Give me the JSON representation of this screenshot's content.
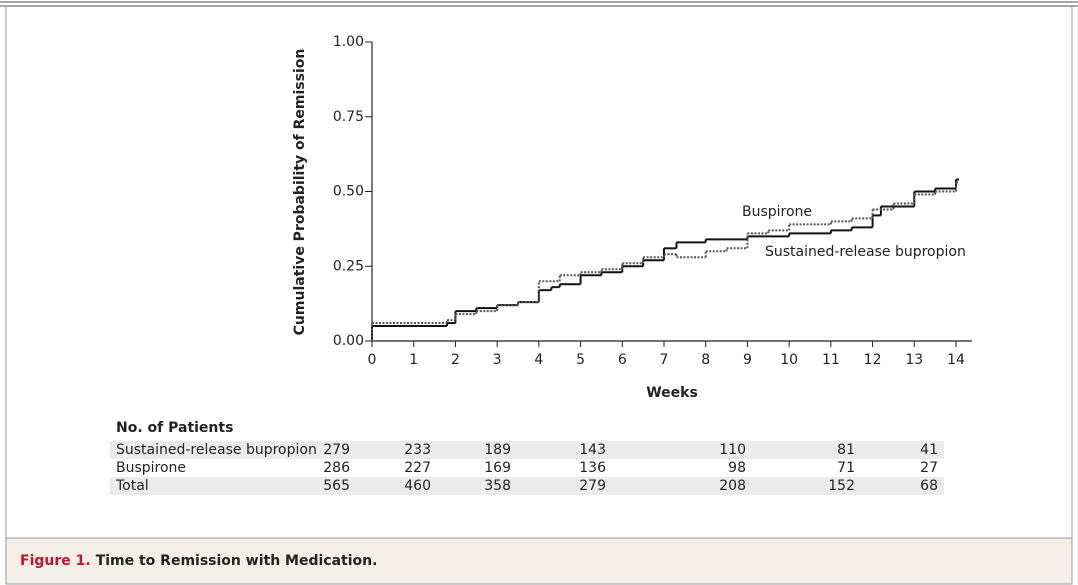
{
  "chart_data": {
    "type": "line",
    "step": true,
    "ylabel": "Cumulative Probability of Remission",
    "xlabel": "Weeks",
    "xlim": [
      0,
      14
    ],
    "ylim": [
      0,
      1
    ],
    "xticks": [
      0,
      1,
      2,
      3,
      4,
      5,
      6,
      7,
      8,
      9,
      10,
      11,
      12,
      13,
      14
    ],
    "yticks": [
      {
        "value": 0,
        "label": "0.00"
      },
      {
        "value": 0.25,
        "label": "0.25"
      },
      {
        "value": 0.5,
        "label": "0.50"
      },
      {
        "value": 0.75,
        "label": "0.75"
      },
      {
        "value": 1,
        "label": "1.00"
      }
    ],
    "series": [
      {
        "name": "Sustained-release bupropion",
        "color": "#111111",
        "dash": false,
        "x": [
          0,
          1.8,
          2,
          2.5,
          3,
          3.5,
          4,
          4.3,
          4.5,
          5,
          5.5,
          6,
          6.5,
          7,
          7.3,
          8,
          9,
          10,
          11,
          11.5,
          12,
          12.2,
          13,
          13.5,
          14
        ],
        "values": [
          0.05,
          0.06,
          0.1,
          0.11,
          0.12,
          0.13,
          0.17,
          0.18,
          0.19,
          0.22,
          0.23,
          0.25,
          0.27,
          0.31,
          0.33,
          0.34,
          0.35,
          0.36,
          0.37,
          0.38,
          0.42,
          0.45,
          0.5,
          0.51,
          0.54
        ]
      },
      {
        "name": "Buspirone",
        "color": "#555555",
        "dash": true,
        "x": [
          0,
          1.8,
          2,
          2.5,
          3,
          3.5,
          4,
          4.5,
          5,
          5.5,
          6,
          6.5,
          7,
          7.3,
          8,
          8.5,
          9,
          9.5,
          10,
          11,
          11.5,
          12,
          12.5,
          13,
          13.5,
          14
        ],
        "values": [
          0.06,
          0.07,
          0.09,
          0.1,
          0.12,
          0.13,
          0.2,
          0.22,
          0.23,
          0.24,
          0.26,
          0.28,
          0.29,
          0.28,
          0.3,
          0.31,
          0.36,
          0.37,
          0.39,
          0.4,
          0.41,
          0.44,
          0.46,
          0.49,
          0.5,
          0.53
        ]
      }
    ]
  },
  "table": {
    "title": "No. of Patients",
    "rows": [
      [
        "Sustained-release bupropion",
        "279",
        "233",
        "189",
        "143",
        "110",
        "81",
        "41"
      ],
      [
        "Buspirone",
        "286",
        "227",
        "169",
        "136",
        "98",
        "71",
        "27"
      ],
      [
        "Total",
        "565",
        "460",
        "358",
        "279",
        "208",
        "152",
        "68"
      ]
    ]
  },
  "caption": {
    "label": "Figure 1.",
    "text": "Time to Remission with Medication."
  }
}
